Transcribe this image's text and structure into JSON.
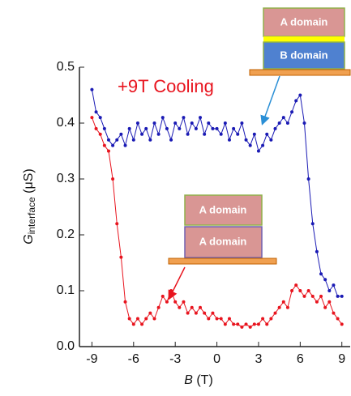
{
  "chart_data": {
    "type": "line",
    "annotation": "+9T Cooling",
    "insets": [
      {
        "labels": [
          "A domain",
          "B domain"
        ]
      },
      {
        "labels": [
          "A domain",
          "A domain"
        ]
      }
    ],
    "xlabel_parts": [
      "B",
      " (T)"
    ],
    "ylabel_parts": [
      "G",
      "interface",
      " (μS)"
    ],
    "xlim": [
      -9.9,
      9.6
    ],
    "ylim": [
      0,
      0.5
    ],
    "xticks": [
      -9,
      -6,
      -3,
      0,
      3,
      6,
      9
    ],
    "yticks": [
      {
        "value": 0,
        "label": "0.0"
      },
      0.1,
      0.2,
      0.3,
      0.4,
      0.5
    ],
    "x": [
      -9,
      -8.7,
      -8.4,
      -8.1,
      -7.8,
      -7.5,
      -7.2,
      -6.9,
      -6.6,
      -6.3,
      -6,
      -5.7,
      -5.4,
      -5.1,
      -4.8,
      -4.5,
      -4.2,
      -3.9,
      -3.6,
      -3.3,
      -3,
      -2.7,
      -2.4,
      -2.1,
      -1.8,
      -1.5,
      -1.2,
      -0.9,
      -0.6,
      -0.3,
      0,
      0.3,
      0.6,
      0.9,
      1.2,
      1.5,
      1.8,
      2.1,
      2.4,
      2.7,
      3,
      3.3,
      3.6,
      3.9,
      4.2,
      4.5,
      4.8,
      5.1,
      5.4,
      5.7,
      6,
      6.3,
      6.6,
      6.9,
      7.2,
      7.5,
      7.8,
      8.1,
      8.4,
      8.7,
      9
    ],
    "series": [
      {
        "color": "#1a1ab4",
        "values": [
          0.46,
          0.42,
          0.41,
          0.39,
          0.37,
          0.36,
          0.37,
          0.38,
          0.36,
          0.39,
          0.37,
          0.4,
          0.38,
          0.39,
          0.37,
          0.4,
          0.38,
          0.41,
          0.39,
          0.37,
          0.4,
          0.39,
          0.41,
          0.38,
          0.4,
          0.39,
          0.41,
          0.38,
          0.4,
          0.39,
          0.39,
          0.38,
          0.4,
          0.37,
          0.39,
          0.38,
          0.4,
          0.37,
          0.36,
          0.38,
          0.35,
          0.36,
          0.38,
          0.37,
          0.39,
          0.4,
          0.41,
          0.4,
          0.42,
          0.44,
          0.45,
          0.4,
          0.3,
          0.22,
          0.17,
          0.13,
          0.12,
          0.1,
          0.11,
          0.09,
          0.09
        ]
      },
      {
        "color": "#e8141e",
        "values": [
          0.41,
          0.39,
          0.38,
          0.36,
          0.35,
          0.3,
          0.22,
          0.16,
          0.08,
          0.05,
          0.04,
          0.05,
          0.04,
          0.05,
          0.06,
          0.05,
          0.07,
          0.09,
          0.08,
          0.1,
          0.08,
          0.07,
          0.08,
          0.06,
          0.07,
          0.06,
          0.07,
          0.06,
          0.05,
          0.06,
          0.05,
          0.05,
          0.04,
          0.05,
          0.04,
          0.04,
          0.035,
          0.04,
          0.035,
          0.04,
          0.04,
          0.05,
          0.04,
          0.05,
          0.06,
          0.07,
          0.08,
          0.07,
          0.1,
          0.11,
          0.1,
          0.09,
          0.1,
          0.09,
          0.08,
          0.09,
          0.07,
          0.08,
          0.06,
          0.05,
          0.04
        ]
      }
    ]
  }
}
